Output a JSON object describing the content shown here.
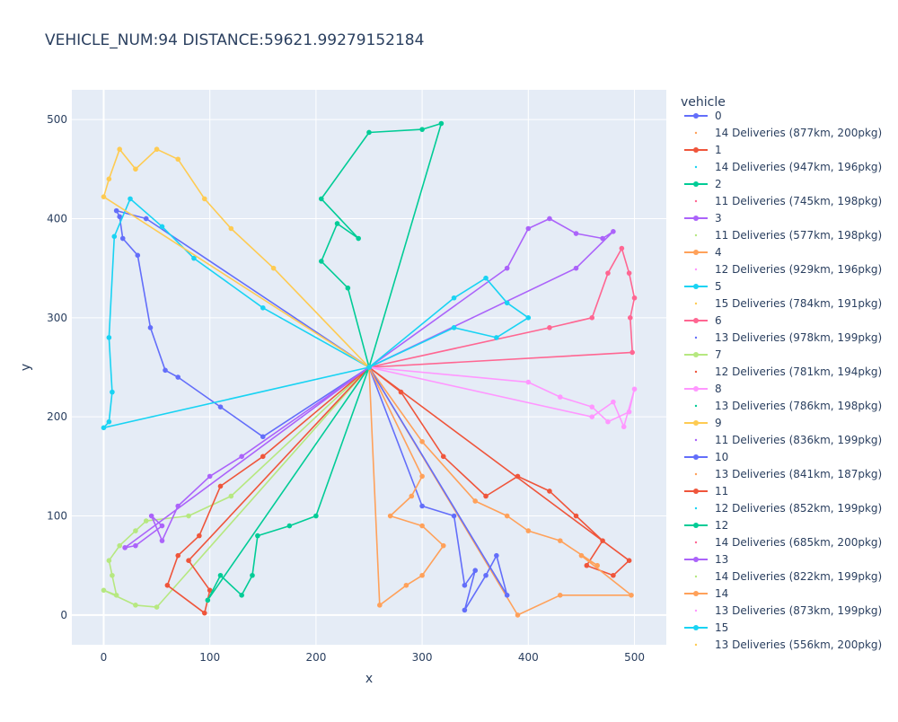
{
  "chart_data": {
    "type": "line",
    "title": "VEHICLE_NUM:94 DISTANCE:59621.99279152184",
    "xlabel": "x",
    "ylabel": "y",
    "xlim": [
      -30,
      530
    ],
    "ylim": [
      -30,
      530
    ],
    "x_ticks": [
      0,
      100,
      200,
      300,
      400,
      500
    ],
    "y_ticks": [
      0,
      100,
      200,
      300,
      400,
      500
    ],
    "grid": true,
    "legend_title": "vehicle",
    "legend_position": "right",
    "depot": [
      250,
      250
    ],
    "routes": [
      {
        "name": "0",
        "color": "#636efa",
        "points": [
          [
            250,
            250
          ],
          [
            40,
            400
          ],
          [
            12,
            408
          ],
          [
            15,
            402
          ],
          [
            18,
            380
          ],
          [
            32,
            363
          ],
          [
            44,
            290
          ],
          [
            58,
            247
          ],
          [
            70,
            240
          ],
          [
            110,
            210
          ],
          [
            150,
            180
          ],
          [
            250,
            250
          ]
        ]
      },
      {
        "name": "1",
        "color": "#ef553b",
        "points": [
          [
            250,
            250
          ],
          [
            280,
            225
          ],
          [
            320,
            160
          ],
          [
            360,
            120
          ],
          [
            390,
            140
          ],
          [
            420,
            125
          ],
          [
            445,
            100
          ],
          [
            470,
            75
          ],
          [
            455,
            50
          ],
          [
            480,
            40
          ],
          [
            495,
            55
          ],
          [
            250,
            250
          ]
        ]
      },
      {
        "name": "2",
        "color": "#00cc96",
        "points": [
          [
            250,
            250
          ],
          [
            230,
            330
          ],
          [
            205,
            357
          ],
          [
            220,
            395
          ],
          [
            240,
            380
          ],
          [
            205,
            420
          ],
          [
            250,
            487
          ],
          [
            300,
            490
          ],
          [
            318,
            496
          ],
          [
            250,
            250
          ]
        ]
      },
      {
        "name": "3",
        "color": "#ab63fa",
        "points": [
          [
            250,
            250
          ],
          [
            380,
            350
          ],
          [
            400,
            390
          ],
          [
            420,
            400
          ],
          [
            445,
            385
          ],
          [
            470,
            380
          ],
          [
            480,
            387
          ],
          [
            445,
            350
          ],
          [
            250,
            250
          ]
        ]
      },
      {
        "name": "4",
        "color": "#ffa15a",
        "points": [
          [
            250,
            250
          ],
          [
            300,
            175
          ],
          [
            350,
            115
          ],
          [
            380,
            100
          ],
          [
            400,
            85
          ],
          [
            430,
            75
          ],
          [
            465,
            50
          ],
          [
            450,
            60
          ],
          [
            497,
            20
          ],
          [
            430,
            20
          ],
          [
            390,
            0
          ],
          [
            250,
            250
          ]
        ]
      },
      {
        "name": "5",
        "color": "#19d3f3",
        "points": [
          [
            250,
            250
          ],
          [
            150,
            310
          ],
          [
            85,
            360
          ],
          [
            55,
            392
          ],
          [
            25,
            420
          ],
          [
            10,
            382
          ],
          [
            5,
            280
          ],
          [
            8,
            225
          ],
          [
            5,
            195
          ],
          [
            0,
            189
          ],
          [
            250,
            250
          ]
        ]
      },
      {
        "name": "6",
        "color": "#ff6692",
        "points": [
          [
            250,
            250
          ],
          [
            420,
            290
          ],
          [
            460,
            300
          ],
          [
            475,
            345
          ],
          [
            488,
            370
          ],
          [
            495,
            345
          ],
          [
            500,
            320
          ],
          [
            496,
            300
          ],
          [
            498,
            265
          ],
          [
            250,
            250
          ]
        ]
      },
      {
        "name": "7",
        "color": "#b6e880",
        "points": [
          [
            250,
            250
          ],
          [
            120,
            120
          ],
          [
            80,
            100
          ],
          [
            40,
            95
          ],
          [
            30,
            85
          ],
          [
            15,
            70
          ],
          [
            5,
            55
          ],
          [
            8,
            40
          ],
          [
            12,
            20
          ],
          [
            0,
            25
          ],
          [
            30,
            10
          ],
          [
            50,
            8
          ],
          [
            250,
            250
          ]
        ]
      },
      {
        "name": "8",
        "color": "#ff97ff",
        "points": [
          [
            250,
            250
          ],
          [
            400,
            235
          ],
          [
            430,
            220
          ],
          [
            460,
            210
          ],
          [
            475,
            195
          ],
          [
            495,
            205
          ],
          [
            500,
            228
          ],
          [
            490,
            190
          ],
          [
            480,
            215
          ],
          [
            460,
            200
          ],
          [
            250,
            250
          ]
        ]
      },
      {
        "name": "9",
        "color": "#fecb52",
        "points": [
          [
            250,
            250
          ],
          [
            160,
            350
          ],
          [
            120,
            390
          ],
          [
            95,
            420
          ],
          [
            70,
            460
          ],
          [
            50,
            470
          ],
          [
            30,
            450
          ],
          [
            15,
            470
          ],
          [
            5,
            440
          ],
          [
            0,
            422
          ],
          [
            250,
            250
          ]
        ]
      },
      {
        "name": "10",
        "color": "#636efa",
        "points": [
          [
            250,
            250
          ],
          [
            300,
            110
          ],
          [
            330,
            100
          ],
          [
            340,
            30
          ],
          [
            350,
            45
          ],
          [
            340,
            5
          ],
          [
            360,
            40
          ],
          [
            370,
            60
          ],
          [
            380,
            20
          ],
          [
            250,
            250
          ]
        ]
      },
      {
        "name": "11",
        "color": "#ef553b",
        "points": [
          [
            250,
            250
          ],
          [
            150,
            160
          ],
          [
            110,
            130
          ],
          [
            90,
            80
          ],
          [
            70,
            60
          ],
          [
            60,
            30
          ],
          [
            95,
            2
          ],
          [
            100,
            25
          ],
          [
            80,
            55
          ],
          [
            250,
            250
          ]
        ]
      },
      {
        "name": "12",
        "color": "#00cc96",
        "points": [
          [
            250,
            250
          ],
          [
            200,
            100
          ],
          [
            175,
            90
          ],
          [
            145,
            80
          ],
          [
            140,
            40
          ],
          [
            130,
            20
          ],
          [
            110,
            40
          ],
          [
            98,
            15
          ],
          [
            250,
            250
          ]
        ]
      },
      {
        "name": "13",
        "color": "#ab63fa",
        "points": [
          [
            250,
            250
          ],
          [
            130,
            160
          ],
          [
            100,
            140
          ],
          [
            70,
            110
          ],
          [
            55,
            75
          ],
          [
            45,
            100
          ],
          [
            55,
            90
          ],
          [
            30,
            70
          ],
          [
            20,
            68
          ],
          [
            250,
            250
          ]
        ]
      },
      {
        "name": "14",
        "color": "#ffa15a",
        "points": [
          [
            250,
            250
          ],
          [
            300,
            140
          ],
          [
            290,
            120
          ],
          [
            270,
            100
          ],
          [
            300,
            90
          ],
          [
            320,
            70
          ],
          [
            300,
            40
          ],
          [
            285,
            30
          ],
          [
            260,
            10
          ],
          [
            250,
            250
          ]
        ]
      },
      {
        "name": "15",
        "color": "#19d3f3",
        "points": [
          [
            250,
            250
          ],
          [
            330,
            320
          ],
          [
            360,
            340
          ],
          [
            380,
            315
          ],
          [
            400,
            300
          ],
          [
            370,
            280
          ],
          [
            330,
            290
          ],
          [
            250,
            250
          ]
        ]
      }
    ],
    "legend_entries": [
      {
        "label": "0",
        "color": "#636efa",
        "kind": "line"
      },
      {
        "label": "14 Deliveries (877km, 200pkg)",
        "color": "#ffa15a",
        "kind": "point"
      },
      {
        "label": "1",
        "color": "#ef553b",
        "kind": "line"
      },
      {
        "label": "14 Deliveries (947km, 196pkg)",
        "color": "#19d3f3",
        "kind": "point"
      },
      {
        "label": "2",
        "color": "#00cc96",
        "kind": "line"
      },
      {
        "label": "11 Deliveries (745km, 198pkg)",
        "color": "#ff6692",
        "kind": "point"
      },
      {
        "label": "3",
        "color": "#ab63fa",
        "kind": "line"
      },
      {
        "label": "11 Deliveries (577km, 198pkg)",
        "color": "#b6e880",
        "kind": "point"
      },
      {
        "label": "4",
        "color": "#ffa15a",
        "kind": "line"
      },
      {
        "label": "12 Deliveries (929km, 196pkg)",
        "color": "#ff97ff",
        "kind": "point"
      },
      {
        "label": "5",
        "color": "#19d3f3",
        "kind": "line"
      },
      {
        "label": "15 Deliveries (784km, 191pkg)",
        "color": "#fecb52",
        "kind": "point"
      },
      {
        "label": "6",
        "color": "#ff6692",
        "kind": "line"
      },
      {
        "label": "13 Deliveries (978km, 199pkg)",
        "color": "#636efa",
        "kind": "point"
      },
      {
        "label": "7",
        "color": "#b6e880",
        "kind": "line"
      },
      {
        "label": "12 Deliveries (781km, 194pkg)",
        "color": "#ef553b",
        "kind": "point"
      },
      {
        "label": "8",
        "color": "#ff97ff",
        "kind": "line"
      },
      {
        "label": "13 Deliveries (786km, 198pkg)",
        "color": "#00cc96",
        "kind": "point"
      },
      {
        "label": "9",
        "color": "#fecb52",
        "kind": "line"
      },
      {
        "label": "11 Deliveries (836km, 199pkg)",
        "color": "#ab63fa",
        "kind": "point"
      },
      {
        "label": "10",
        "color": "#636efa",
        "kind": "line"
      },
      {
        "label": "13 Deliveries (841km, 187pkg)",
        "color": "#ffa15a",
        "kind": "point"
      },
      {
        "label": "11",
        "color": "#ef553b",
        "kind": "line"
      },
      {
        "label": "12 Deliveries (852km, 199pkg)",
        "color": "#19d3f3",
        "kind": "point"
      },
      {
        "label": "12",
        "color": "#00cc96",
        "kind": "line"
      },
      {
        "label": "14 Deliveries (685km, 200pkg)",
        "color": "#ff6692",
        "kind": "point"
      },
      {
        "label": "13",
        "color": "#ab63fa",
        "kind": "line"
      },
      {
        "label": "14 Deliveries (822km, 199pkg)",
        "color": "#b6e880",
        "kind": "point"
      },
      {
        "label": "14",
        "color": "#ffa15a",
        "kind": "line"
      },
      {
        "label": "13 Deliveries (873km, 199pkg)",
        "color": "#ff97ff",
        "kind": "point"
      },
      {
        "label": "15",
        "color": "#19d3f3",
        "kind": "line"
      },
      {
        "label": "13 Deliveries (556km, 200pkg)",
        "color": "#fecb52",
        "kind": "point"
      }
    ]
  }
}
